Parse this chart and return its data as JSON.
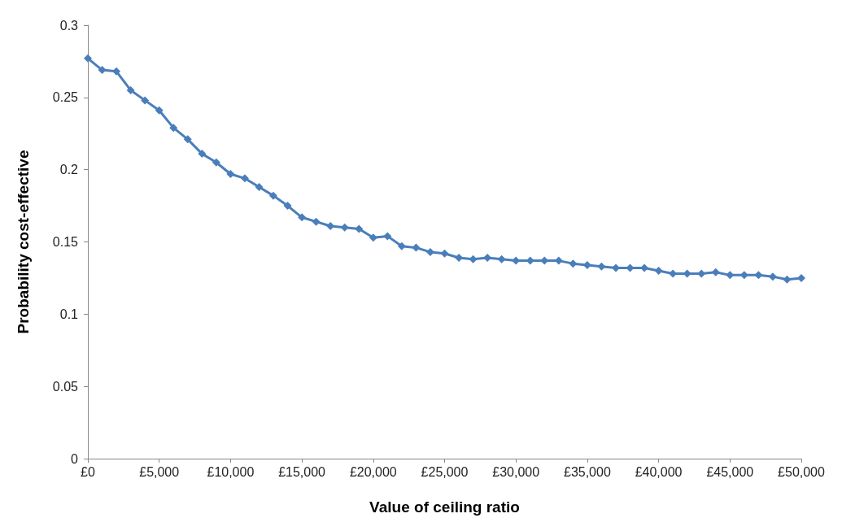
{
  "chart_data": {
    "type": "line",
    "xlabel": "Value of ceiling ratio",
    "ylabel": "Probability cost-effective",
    "x": [
      0,
      1000,
      2000,
      3000,
      4000,
      5000,
      6000,
      7000,
      8000,
      9000,
      10000,
      11000,
      12000,
      13000,
      14000,
      15000,
      16000,
      17000,
      18000,
      19000,
      20000,
      21000,
      22000,
      23000,
      24000,
      25000,
      26000,
      27000,
      28000,
      29000,
      30000,
      31000,
      32000,
      33000,
      34000,
      35000,
      36000,
      37000,
      38000,
      39000,
      40000,
      41000,
      42000,
      43000,
      44000,
      45000,
      46000,
      47000,
      48000,
      49000,
      50000
    ],
    "series": [
      {
        "color": "#4a7ebb",
        "values": [
          0.277,
          0.269,
          0.268,
          0.255,
          0.248,
          0.241,
          0.229,
          0.221,
          0.211,
          0.205,
          0.197,
          0.194,
          0.188,
          0.182,
          0.175,
          0.167,
          0.164,
          0.161,
          0.16,
          0.159,
          0.153,
          0.154,
          0.147,
          0.146,
          0.143,
          0.142,
          0.139,
          0.138,
          0.139,
          0.138,
          0.137,
          0.137,
          0.137,
          0.137,
          0.135,
          0.134,
          0.133,
          0.132,
          0.132,
          0.132,
          0.13,
          0.128,
          0.128,
          0.128,
          0.129,
          0.127,
          0.127,
          0.127,
          0.126,
          0.124,
          0.125
        ]
      }
    ],
    "xlim": [
      0,
      50000
    ],
    "xticks": [
      {
        "value": 0,
        "label": "£0"
      },
      {
        "value": 5000,
        "label": "£5,000"
      },
      {
        "value": 10000,
        "label": "£10,000"
      },
      {
        "value": 15000,
        "label": "£15,000"
      },
      {
        "value": 20000,
        "label": "£20,000"
      },
      {
        "value": 25000,
        "label": "£25,000"
      },
      {
        "value": 30000,
        "label": "£30,000"
      },
      {
        "value": 35000,
        "label": "£35,000"
      },
      {
        "value": 40000,
        "label": "£40,000"
      },
      {
        "value": 45000,
        "label": "£45,000"
      },
      {
        "value": 50000,
        "label": "£50,000"
      }
    ],
    "ylim": [
      0,
      0.3
    ],
    "yticks": [
      0,
      0.05,
      0.1,
      0.15,
      0.2,
      0.25,
      0.3
    ],
    "grid": false,
    "marker": "diamond",
    "line_style": "solid"
  }
}
